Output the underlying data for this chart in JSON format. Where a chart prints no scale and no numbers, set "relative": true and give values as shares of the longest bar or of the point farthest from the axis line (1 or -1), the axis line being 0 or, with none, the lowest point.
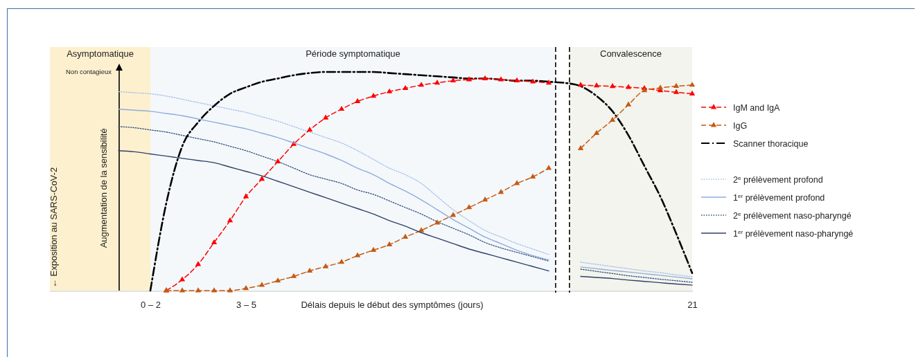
{
  "chart_data": {
    "type": "line",
    "relative": true,
    "xlabel": "Délais depuis le début des symptômes (jours)",
    "ylabel": "Augmentation de la sensibilité",
    "categories": [
      null,
      null,
      null,
      null,
      null,
      null,
      "0 – 2",
      null,
      null,
      null,
      null,
      null,
      "3 – 5",
      null,
      null,
      null,
      null,
      null,
      null,
      null,
      null,
      null,
      null,
      null,
      null,
      null,
      null,
      null,
      null,
      null,
      null,
      null,
      null,
      null,
      null,
      null,
      null,
      null,
      null,
      null,
      "21"
    ],
    "tick_labels": "x",
    "legend": "right",
    "marker": "none",
    "annotations": [
      "← Exposition au SARS-CoV-2",
      "Non contagieux",
      "Asymptomatique",
      "Période symptomatique",
      "Convalescence"
    ],
    "series": [
      {
        "name": "IgM and IgA",
        "color": "#ff0000",
        "line_style": "dashed",
        "marker": "triangle",
        "values": [
          null,
          null,
          null,
          null,
          null,
          null,
          null,
          0,
          0.05,
          0.12,
          0.22,
          0.32,
          0.43,
          0.51,
          0.59,
          0.67,
          0.735,
          0.79,
          0.83,
          0.865,
          0.89,
          0.91,
          0.925,
          0.94,
          0.95,
          0.96,
          0.965,
          0.97,
          0.965,
          0.96,
          0.955,
          0.95,
          null,
          0.94,
          0.937,
          0.934,
          0.93,
          0.925,
          0.915,
          0.907,
          0.9
        ]
      },
      {
        "name": "IgG",
        "color": "#c55a11",
        "line_style": "dashed",
        "marker": "triangle",
        "values": [
          null,
          null,
          null,
          null,
          null,
          null,
          null,
          0,
          0,
          0,
          0,
          0,
          0.01,
          0.025,
          0.045,
          0.065,
          0.09,
          0.11,
          0.13,
          0.16,
          0.185,
          0.21,
          0.245,
          0.275,
          0.31,
          0.345,
          0.38,
          0.415,
          0.45,
          0.49,
          0.52,
          0.56,
          null,
          0.65,
          0.72,
          0.78,
          0.85,
          0.915,
          0.927,
          0.935,
          0.94
        ]
      },
      {
        "name": "Scanner thoracique",
        "color": "#000000",
        "line_style": "dashdot",
        "values": [
          null,
          null,
          null,
          null,
          null,
          null,
          0,
          0.4,
          0.66,
          0.77,
          0.845,
          0.9,
          0.93,
          0.955,
          0.97,
          0.985,
          0.995,
          1,
          1,
          1,
          1,
          0.995,
          0.99,
          0.985,
          0.98,
          0.975,
          0.97,
          0.97,
          0.965,
          0.96,
          0.96,
          0.955,
          0.95,
          0.935,
          0.89,
          0.82,
          0.71,
          0.57,
          0.43,
          0.26,
          0.08
        ]
      },
      {
        "name": "2$^{e}$ prélèvement profond",
        "color": "#a3bde8",
        "line_style": "dotted",
        "values": [
          null,
          null,
          null,
          null,
          0.91,
          0.905,
          0.9,
          0.89,
          0.875,
          0.86,
          0.845,
          0.83,
          0.815,
          0.795,
          0.775,
          0.75,
          0.725,
          0.7,
          0.675,
          0.64,
          0.6,
          0.56,
          0.53,
          0.49,
          0.43,
          0.37,
          0.32,
          0.275,
          0.245,
          0.215,
          0.19,
          0.165,
          null,
          0.13,
          0.12,
          0.11,
          0.1,
          0.09,
          0.082,
          0.072,
          0.063
        ]
      },
      {
        "name": "1$^{er}$ prélèvement profond",
        "color": "#8faadc",
        "line_style": "solid",
        "values": [
          null,
          null,
          null,
          null,
          0.83,
          0.825,
          0.82,
          0.81,
          0.8,
          0.785,
          0.77,
          0.755,
          0.74,
          0.72,
          0.7,
          0.675,
          0.65,
          0.625,
          0.595,
          0.56,
          0.53,
          0.49,
          0.455,
          0.415,
          0.37,
          0.325,
          0.285,
          0.245,
          0.215,
          0.185,
          0.16,
          0.14,
          null,
          0.108,
          0.1,
          0.092,
          0.085,
          0.077,
          0.07,
          0.062,
          0.054
        ]
      },
      {
        "name": "2$^{e}$ prélèvement naso-pharyngé",
        "color": "#2f4a7a",
        "line_style": "dotted",
        "values": [
          null,
          null,
          null,
          null,
          0.75,
          0.745,
          0.735,
          0.725,
          0.71,
          0.695,
          0.68,
          0.66,
          0.64,
          0.615,
          0.59,
          0.56,
          0.53,
          0.51,
          0.49,
          0.46,
          0.44,
          0.41,
          0.38,
          0.35,
          0.315,
          0.285,
          0.255,
          0.22,
          0.195,
          0.175,
          0.155,
          0.135,
          null,
          0.098,
          0.088,
          0.078,
          0.068,
          0.06,
          0.052,
          0.045,
          0.038
        ]
      },
      {
        "name": "1$^{er}$ prélèvement naso-pharyngé",
        "color": "#2f3f66",
        "line_style": "solid",
        "values": [
          null,
          null,
          null,
          null,
          0.64,
          0.635,
          0.625,
          0.615,
          0.605,
          0.595,
          0.585,
          0.565,
          0.545,
          0.525,
          0.5,
          0.475,
          0.45,
          0.425,
          0.4,
          0.375,
          0.35,
          0.32,
          0.295,
          0.265,
          0.24,
          0.215,
          0.19,
          0.17,
          0.15,
          0.13,
          0.11,
          0.09,
          null,
          0.065,
          0.06,
          0.055,
          0.048,
          0.042,
          0.036,
          0.03,
          0.025
        ]
      }
    ]
  }
}
